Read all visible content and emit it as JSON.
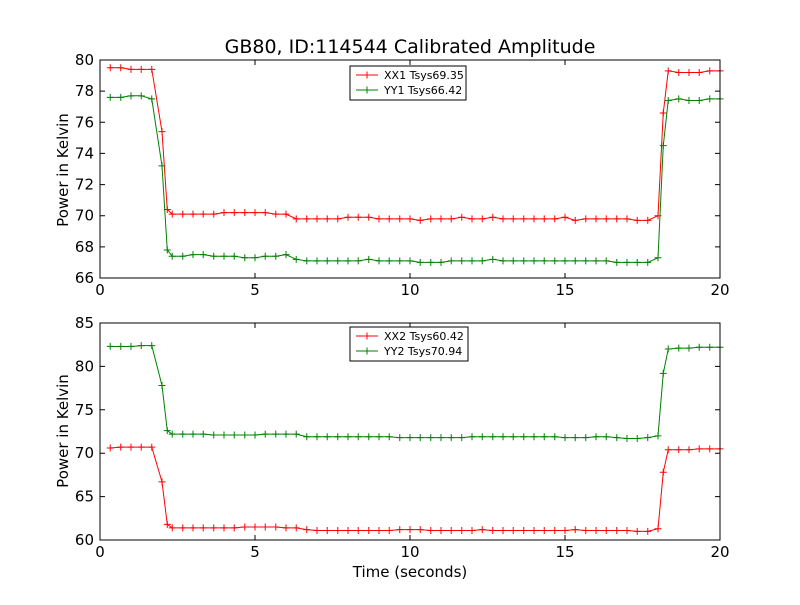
{
  "chart_data": [
    {
      "type": "line",
      "title": "GB80, ID:114544 Calibrated Amplitude",
      "xlabel": "",
      "ylabel": "Power in Kelvin",
      "xlim": [
        0,
        20
      ],
      "ylim": [
        66,
        80
      ],
      "xticks": [
        "0",
        "5",
        "10",
        "15",
        "20"
      ],
      "yticks": [
        "66",
        "68",
        "70",
        "72",
        "74",
        "76",
        "78",
        "80"
      ],
      "legend_position": "top-center",
      "grid": false,
      "x": [
        0.33,
        0.67,
        1.0,
        1.33,
        1.67,
        2.0,
        2.17,
        2.33,
        2.67,
        3.0,
        3.33,
        3.67,
        4.0,
        4.33,
        4.67,
        5.0,
        5.33,
        5.67,
        6.0,
        6.33,
        6.67,
        7.0,
        7.33,
        7.67,
        8.0,
        8.33,
        8.67,
        9.0,
        9.33,
        9.67,
        10.0,
        10.33,
        10.67,
        11.0,
        11.33,
        11.67,
        12.0,
        12.33,
        12.67,
        13.0,
        13.33,
        13.67,
        14.0,
        14.33,
        14.67,
        15.0,
        15.33,
        15.67,
        16.0,
        16.33,
        16.67,
        17.0,
        17.33,
        17.67,
        18.0,
        18.17,
        18.33,
        18.67,
        19.0,
        19.33,
        19.67,
        20.0
      ],
      "series": [
        {
          "name": "XX1 Tsys69.35",
          "color": "#ff0000",
          "values": [
            79.5,
            79.5,
            79.4,
            79.4,
            79.4,
            75.4,
            70.4,
            70.1,
            70.1,
            70.1,
            70.1,
            70.1,
            70.2,
            70.2,
            70.2,
            70.2,
            70.2,
            70.1,
            70.1,
            69.8,
            69.8,
            69.8,
            69.8,
            69.8,
            69.9,
            69.9,
            69.9,
            69.8,
            69.8,
            69.8,
            69.8,
            69.7,
            69.8,
            69.8,
            69.8,
            69.9,
            69.8,
            69.8,
            69.9,
            69.8,
            69.8,
            69.8,
            69.8,
            69.8,
            69.8,
            69.9,
            69.7,
            69.8,
            69.8,
            69.8,
            69.8,
            69.8,
            69.7,
            69.7,
            70.0,
            76.6,
            79.3,
            79.2,
            79.2,
            79.2,
            79.3,
            79.3
          ]
        },
        {
          "name": "YY1 Tsys66.42",
          "color": "#008000",
          "values": [
            77.6,
            77.6,
            77.7,
            77.7,
            77.5,
            73.2,
            67.8,
            67.4,
            67.4,
            67.5,
            67.5,
            67.4,
            67.4,
            67.4,
            67.3,
            67.3,
            67.4,
            67.4,
            67.5,
            67.2,
            67.1,
            67.1,
            67.1,
            67.1,
            67.1,
            67.1,
            67.2,
            67.1,
            67.1,
            67.1,
            67.1,
            67.0,
            67.0,
            67.0,
            67.1,
            67.1,
            67.1,
            67.1,
            67.2,
            67.1,
            67.1,
            67.1,
            67.1,
            67.1,
            67.1,
            67.1,
            67.1,
            67.1,
            67.1,
            67.1,
            67.0,
            67.0,
            67.0,
            67.0,
            67.3,
            74.5,
            77.4,
            77.5,
            77.4,
            77.4,
            77.5,
            77.5
          ]
        }
      ]
    },
    {
      "type": "line",
      "title": "",
      "xlabel": "Time (seconds)",
      "ylabel": "Power in Kelvin",
      "xlim": [
        0,
        20
      ],
      "ylim": [
        60,
        85
      ],
      "xticks": [
        "0",
        "5",
        "10",
        "15",
        "20"
      ],
      "yticks": [
        "60",
        "65",
        "70",
        "75",
        "80",
        "85"
      ],
      "legend_position": "top-center",
      "grid": false,
      "x": [
        0.33,
        0.67,
        1.0,
        1.33,
        1.67,
        2.0,
        2.17,
        2.33,
        2.67,
        3.0,
        3.33,
        3.67,
        4.0,
        4.33,
        4.67,
        5.0,
        5.33,
        5.67,
        6.0,
        6.33,
        6.67,
        7.0,
        7.33,
        7.67,
        8.0,
        8.33,
        8.67,
        9.0,
        9.33,
        9.67,
        10.0,
        10.33,
        10.67,
        11.0,
        11.33,
        11.67,
        12.0,
        12.33,
        12.67,
        13.0,
        13.33,
        13.67,
        14.0,
        14.33,
        14.67,
        15.0,
        15.33,
        15.67,
        16.0,
        16.33,
        16.67,
        17.0,
        17.33,
        17.67,
        18.0,
        18.17,
        18.33,
        18.67,
        19.0,
        19.33,
        19.67,
        20.0
      ],
      "series": [
        {
          "name": "XX2 Tsys60.42",
          "color": "#ff0000",
          "values": [
            70.6,
            70.7,
            70.7,
            70.7,
            70.7,
            66.7,
            61.8,
            61.4,
            61.4,
            61.4,
            61.4,
            61.4,
            61.4,
            61.4,
            61.5,
            61.5,
            61.5,
            61.5,
            61.4,
            61.4,
            61.2,
            61.1,
            61.1,
            61.1,
            61.1,
            61.1,
            61.1,
            61.1,
            61.1,
            61.2,
            61.2,
            61.2,
            61.1,
            61.1,
            61.1,
            61.1,
            61.1,
            61.2,
            61.1,
            61.1,
            61.1,
            61.1,
            61.1,
            61.1,
            61.1,
            61.1,
            61.2,
            61.1,
            61.1,
            61.1,
            61.1,
            61.1,
            61.0,
            61.0,
            61.3,
            67.8,
            70.4,
            70.4,
            70.4,
            70.5,
            70.5,
            70.5
          ]
        },
        {
          "name": "YY2 Tsys70.94",
          "color": "#008000",
          "values": [
            82.3,
            82.3,
            82.3,
            82.4,
            82.4,
            77.8,
            72.6,
            72.2,
            72.2,
            72.2,
            72.2,
            72.1,
            72.1,
            72.1,
            72.1,
            72.1,
            72.2,
            72.2,
            72.2,
            72.2,
            71.9,
            71.9,
            71.9,
            71.9,
            71.9,
            71.9,
            71.9,
            71.9,
            71.9,
            71.8,
            71.8,
            71.8,
            71.8,
            71.8,
            71.8,
            71.8,
            71.9,
            71.9,
            71.9,
            71.9,
            71.9,
            71.9,
            71.9,
            71.9,
            71.9,
            71.8,
            71.8,
            71.8,
            71.9,
            71.9,
            71.8,
            71.7,
            71.7,
            71.8,
            72.0,
            79.2,
            82.0,
            82.1,
            82.1,
            82.2,
            82.2,
            82.2
          ]
        }
      ]
    }
  ]
}
